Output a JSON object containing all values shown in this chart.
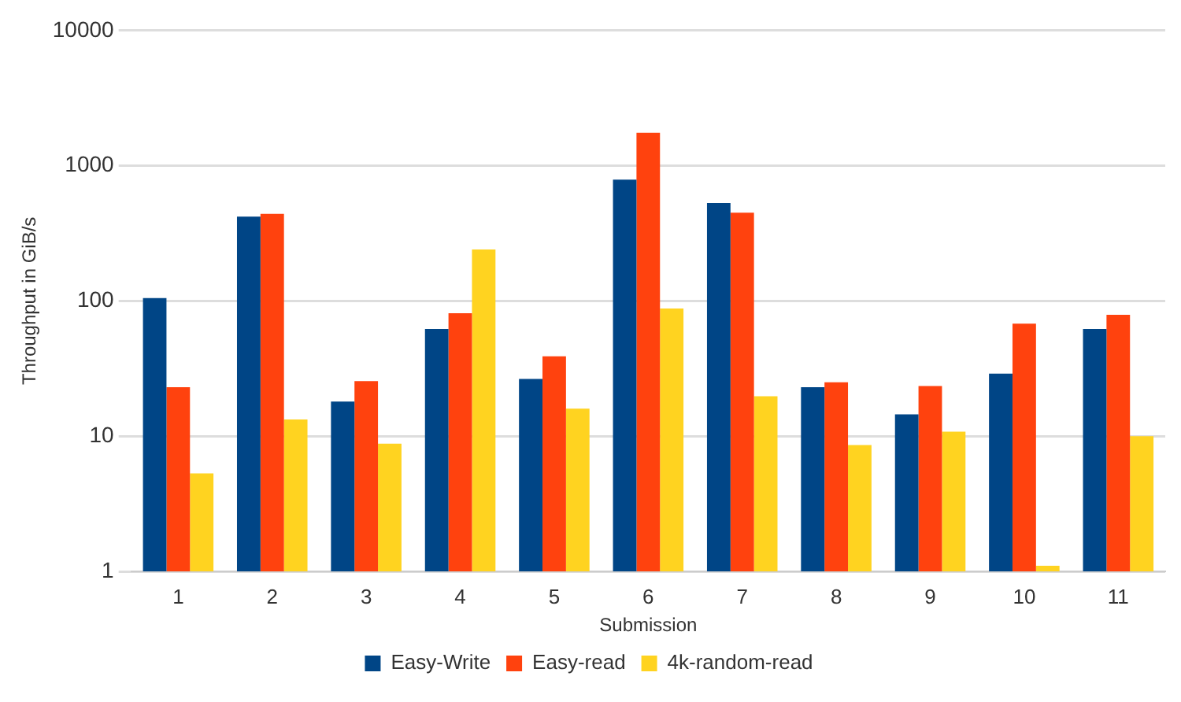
{
  "chart_data": {
    "type": "bar",
    "xlabel": "Submission",
    "ylabel": "Throughput in GiB/s",
    "categories": [
      "1",
      "2",
      "3",
      "4",
      "5",
      "6",
      "7",
      "8",
      "9",
      "10",
      "11"
    ],
    "series": [
      {
        "name": "Easy-Write",
        "color": "#004586",
        "values": [
          105,
          420,
          18,
          62,
          26.5,
          790,
          530,
          23,
          14.5,
          29,
          62
        ]
      },
      {
        "name": "Easy-read",
        "color": "#ff420e",
        "values": [
          23,
          440,
          25.5,
          81,
          39,
          1750,
          450,
          25,
          23.5,
          68,
          79
        ]
      },
      {
        "name": "4k-random-read",
        "color": "#ffd320",
        "values": [
          5.3,
          13.3,
          8.8,
          240,
          16,
          88,
          19.7,
          8.6,
          10.8,
          1.1,
          10
        ]
      }
    ],
    "log": "y",
    "ylim": [
      1,
      10000
    ],
    "yticks": [
      1,
      10,
      100,
      1000,
      10000
    ],
    "grid": "y",
    "legend": "bottom"
  }
}
